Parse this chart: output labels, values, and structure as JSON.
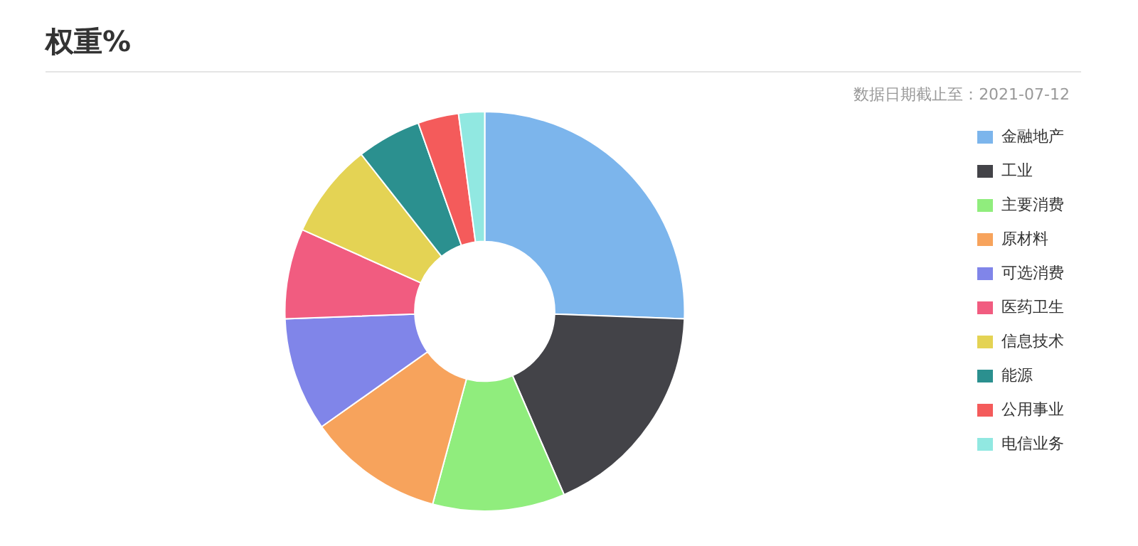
{
  "chart_data": {
    "type": "donut",
    "title": "权重%",
    "annotations": [
      "数据日期截止至：2021-07-12"
    ],
    "categories": [
      "金融地产",
      "工业",
      "主要消费",
      "原材料",
      "可选消费",
      "医药卫生",
      "信息技术",
      "能源",
      "公用事业",
      "电信业务"
    ],
    "values": [
      25.6,
      17.9,
      10.7,
      11,
      9.2,
      7.3,
      7.7,
      5.2,
      3.3,
      2.1
    ],
    "colors": [
      "#7cb5ec",
      "#434348",
      "#90ed7d",
      "#f7a35c",
      "#8085e9",
      "#f15c80",
      "#e4d354",
      "#2b908f",
      "#f45b5b",
      "#91e8e1"
    ],
    "legend": "right"
  }
}
